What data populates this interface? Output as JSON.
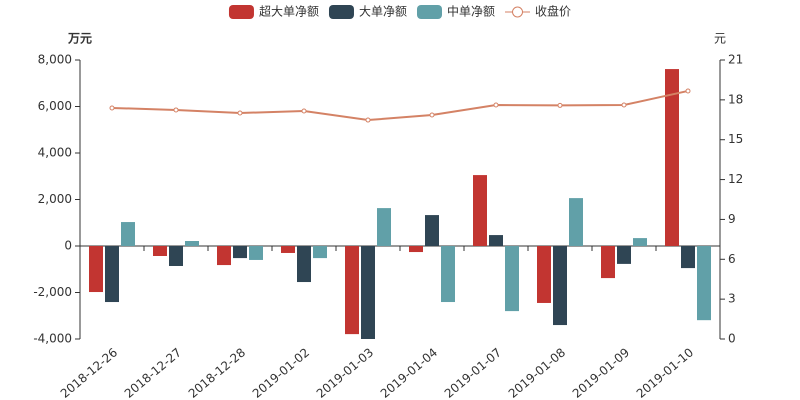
{
  "chart_data": {
    "type": "bar-line",
    "categories": [
      "2018-12-26",
      "2018-12-27",
      "2018-12-28",
      "2019-01-02",
      "2019-01-03",
      "2019-01-04",
      "2019-01-07",
      "2019-01-08",
      "2019-01-09",
      "2019-01-10"
    ],
    "series": [
      {
        "name": "超大单净额",
        "type": "bar",
        "color": "#c23531",
        "values": [
          -1980,
          -430,
          -820,
          -300,
          -3790,
          -260,
          3050,
          -2450,
          -1380,
          7610
        ]
      },
      {
        "name": "大单净额",
        "type": "bar",
        "color": "#2f4554",
        "values": [
          -2410,
          -860,
          -520,
          -1550,
          -4000,
          1330,
          470,
          -3400,
          -770,
          -950
        ]
      },
      {
        "name": "中单净额",
        "type": "bar",
        "color": "#61a0a8",
        "values": [
          1030,
          215,
          -600,
          -520,
          1630,
          -2410,
          -2800,
          2060,
          340,
          -3190
        ]
      },
      {
        "name": "收盘价",
        "type": "line",
        "axis": "y2",
        "color": "#d48265",
        "values": [
          17.39,
          17.24,
          17.01,
          17.16,
          16.48,
          16.86,
          17.61,
          17.58,
          17.61,
          18.67
        ]
      }
    ],
    "y_label": "万元",
    "y2_label": "元",
    "ylim": [
      -4000,
      8000
    ],
    "yticks": [
      {
        "value": -4000,
        "label": "-4,000"
      },
      {
        "value": -2000,
        "label": "-2,000"
      },
      0,
      {
        "value": 2000,
        "label": "2,000"
      },
      {
        "value": 4000,
        "label": "4,000"
      },
      {
        "value": 6000,
        "label": "6,000"
      },
      {
        "value": 8000,
        "label": "8,000"
      }
    ],
    "y2lim": [
      0,
      21
    ],
    "y2ticks": [
      0,
      3,
      6,
      9,
      12,
      15,
      18,
      21
    ],
    "legend": "top"
  }
}
